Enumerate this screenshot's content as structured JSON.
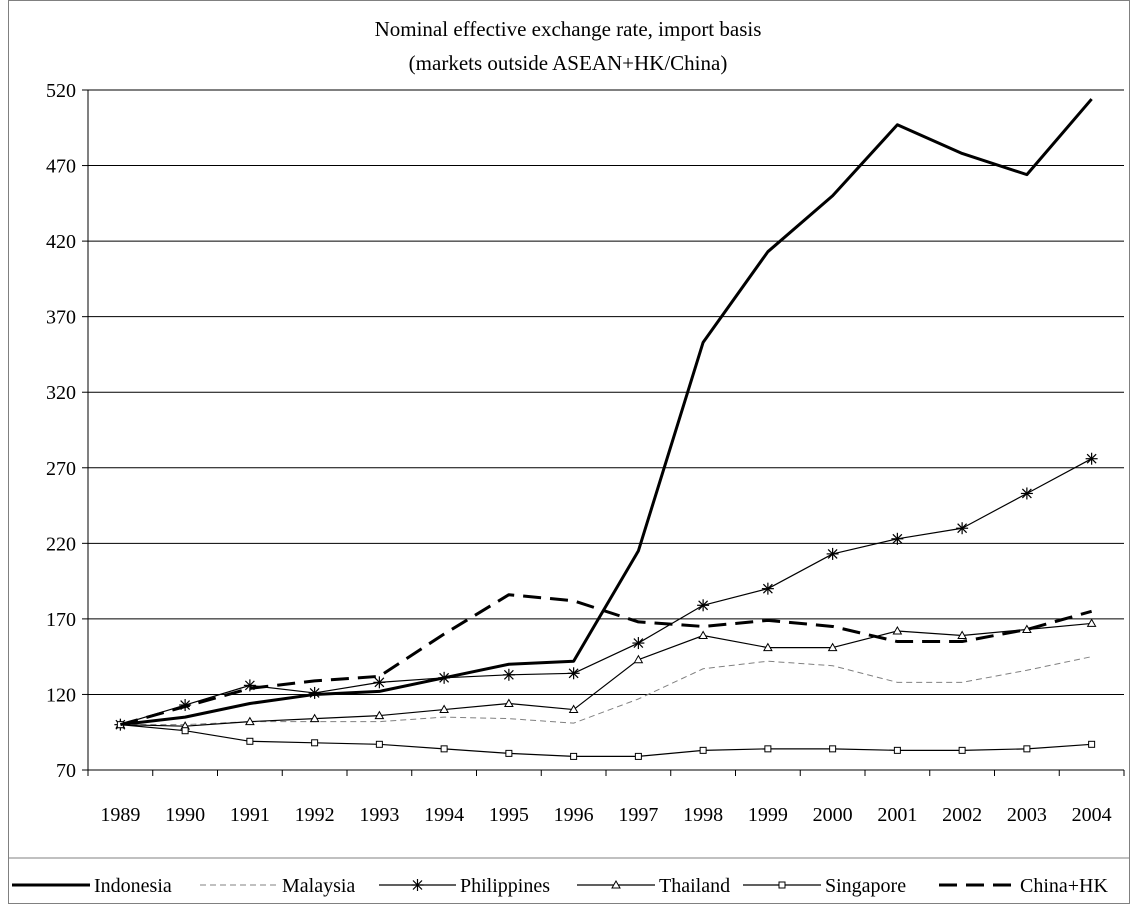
{
  "chart_data": {
    "type": "line",
    "title": "Nominal effective exchange rate, import basis",
    "subtitle": "(markets outside ASEAN+HK/China)",
    "xlabel": "",
    "ylabel": "",
    "categories": [
      "1989",
      "1990",
      "1991",
      "1992",
      "1993",
      "1994",
      "1995",
      "1996",
      "1997",
      "1998",
      "1999",
      "2000",
      "2001",
      "2002",
      "2003",
      "2004"
    ],
    "ylim": [
      70,
      520
    ],
    "yticks": [
      70,
      120,
      170,
      220,
      270,
      320,
      370,
      420,
      470,
      520
    ],
    "grid": true,
    "legend_position": "bottom",
    "series": [
      {
        "name": "Indonesia",
        "style": "thick-solid",
        "marker": "none",
        "color": "#000000",
        "values": [
          100,
          105,
          114,
          120,
          122,
          131,
          140,
          142,
          215,
          353,
          413,
          450,
          497,
          478,
          464,
          514
        ]
      },
      {
        "name": "Malaysia",
        "style": "thin-dashed",
        "marker": "none",
        "color": "#808080",
        "values": [
          100,
          100,
          102,
          102,
          102,
          105,
          104,
          101,
          117,
          137,
          142,
          139,
          128,
          128,
          136,
          145
        ]
      },
      {
        "name": "Philippines",
        "style": "thin-solid",
        "marker": "asterisk",
        "color": "#000000",
        "values": [
          100,
          113,
          126,
          121,
          128,
          131,
          133,
          134,
          154,
          179,
          190,
          213,
          223,
          230,
          253,
          276
        ]
      },
      {
        "name": "Thailand",
        "style": "thin-solid",
        "marker": "triangle",
        "color": "#000000",
        "values": [
          100,
          99,
          102,
          104,
          106,
          110,
          114,
          110,
          143,
          159,
          151,
          151,
          162,
          159,
          163,
          167
        ]
      },
      {
        "name": "Singapore",
        "style": "thin-solid",
        "marker": "square",
        "color": "#000000",
        "values": [
          100,
          96,
          89,
          88,
          87,
          84,
          81,
          79,
          79,
          83,
          84,
          84,
          83,
          83,
          84,
          87
        ]
      },
      {
        "name": "China+HK",
        "style": "thick-dashed",
        "marker": "none",
        "color": "#000000",
        "values": [
          100,
          112,
          124,
          129,
          132,
          160,
          186,
          182,
          168,
          165,
          169,
          165,
          155,
          155,
          163,
          175
        ]
      }
    ]
  }
}
